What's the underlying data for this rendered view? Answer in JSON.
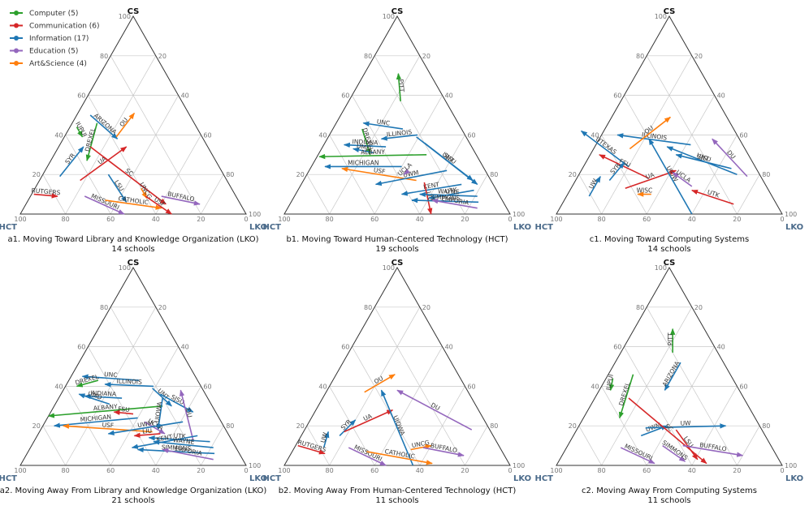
{
  "legend": [
    {
      "label": "Computer (5)",
      "color": "#2ca02c"
    },
    {
      "label": "Communication (6)",
      "color": "#d62728"
    },
    {
      "label": "Information (17)",
      "color": "#1f77b4"
    },
    {
      "label": "Education (5)",
      "color": "#9467bd"
    },
    {
      "label": "Art&Science (4)",
      "color": "#ff7f0e"
    }
  ],
  "axes": {
    "top": "CS",
    "left": "HCT",
    "right": "LKO",
    "ticks": [
      "20",
      "40",
      "60",
      "80",
      "100"
    ],
    "zero": "0"
  },
  "chart_data": [
    {
      "type": "ternary-arrows",
      "id": "a1",
      "title": "a1. Moving Toward Library and Knowledge Organization (LKO)",
      "subtitle": "14 schools",
      "arrows": [
        {
          "label": "IUPUI",
          "cat": 0,
          "from": [
            53,
            44
          ],
          "to": [
            53,
            39
          ]
        },
        {
          "label": "DREXEL",
          "cat": 0,
          "from": [
            43,
            46
          ],
          "to": [
            57,
            27
          ]
        },
        {
          "label": "ARIZONA",
          "cat": 2,
          "from": [
            44,
            50
          ],
          "to": [
            38,
            38
          ]
        },
        {
          "label": "OU",
          "cat": 4,
          "from": [
            38,
            39
          ],
          "to": [
            24,
            51
          ]
        },
        {
          "label": "SYR",
          "cat": 2,
          "from": [
            73,
            19
          ],
          "to": [
            55,
            34
          ]
        },
        {
          "label": "RUTGERS",
          "cat": 1,
          "from": [
            89,
            10
          ],
          "to": [
            79,
            9
          ]
        },
        {
          "label": "UA",
          "cat": 1,
          "from": [
            65,
            17
          ],
          "to": [
            36,
            34
          ]
        },
        {
          "label": "LSU",
          "cat": 2,
          "from": [
            51,
            20
          ],
          "to": [
            50,
            6
          ]
        },
        {
          "label": "SC",
          "cat": 1,
          "from": [
            52,
            34
          ],
          "to": [
            33,
            5
          ]
        },
        {
          "label": "UNCG",
          "cat": 4,
          "from": [
            40,
            13
          ],
          "to": [
            40,
            8
          ]
        },
        {
          "label": "BUFFALO",
          "cat": 3,
          "from": [
            33,
            9
          ],
          "to": [
            18,
            5
          ]
        },
        {
          "label": "MISSOURI",
          "cat": 3,
          "from": [
            67,
            9
          ],
          "to": [
            54,
            0
          ]
        },
        {
          "label": "CATHOLIC",
          "cat": 4,
          "from": [
            59,
            7
          ],
          "to": [
            36,
            3
          ]
        },
        {
          "label": "USF",
          "cat": 1,
          "from": [
            40,
            9
          ],
          "to": [
            33,
            0
          ]
        }
      ]
    },
    {
      "type": "ternary-arrows",
      "id": "b1",
      "title": "b1. Moving Toward Human-Centered Technology (HCT)",
      "subtitle": "19 schools",
      "arrows": [
        {
          "label": "PITT",
          "cat": 0,
          "from": [
            20,
            57
          ],
          "to": [
            14,
            71
          ]
        },
        {
          "label": "UNC",
          "cat": 2,
          "from": [
            26,
            43
          ],
          "to": [
            42,
            46
          ]
        },
        {
          "label": "ILLINOIS",
          "cat": 2,
          "from": [
            21,
            40
          ],
          "to": [
            38,
            38
          ]
        },
        {
          "label": "DREXEL",
          "cat": 0,
          "from": [
            44,
            43
          ],
          "to": [
            47,
            30
          ]
        },
        {
          "label": "INDIANA",
          "cat": 2,
          "from": [
            38,
            34
          ],
          "to": [
            56,
            35
          ]
        },
        {
          "label": "UMD",
          "cat": 2,
          "from": [
            45,
            31
          ],
          "to": [
            53,
            33
          ]
        },
        {
          "label": "UNT",
          "cat": 2,
          "from": [
            22,
            39
          ],
          "to": [
            7,
            15
          ]
        },
        {
          "label": "SJSU",
          "cat": 2,
          "from": [
            20,
            36
          ],
          "to": [
            8,
            17
          ]
        },
        {
          "label": "ALBANY",
          "cat": 0,
          "from": [
            22,
            30
          ],
          "to": [
            70,
            29
          ]
        },
        {
          "label": "MICHIGAN",
          "cat": 2,
          "from": [
            36,
            24
          ],
          "to": [
            70,
            24
          ]
        },
        {
          "label": "USF",
          "cat": 4,
          "from": [
            33,
            17
          ],
          "to": [
            63,
            23
          ]
        },
        {
          "label": "UWM",
          "cat": 2,
          "from": [
            17,
            22
          ],
          "to": [
            52,
            15
          ]
        },
        {
          "label": "UCLA",
          "cat": 3,
          "from": [
            34,
            22
          ],
          "to": [
            37,
            20
          ]
        },
        {
          "label": "KENT",
          "cat": 2,
          "from": [
            14,
            15
          ],
          "to": [
            43,
            10
          ]
        },
        {
          "label": "LIU",
          "cat": 1,
          "from": [
            30,
            16
          ],
          "to": [
            35,
            0
          ]
        },
        {
          "label": "UTK",
          "cat": 2,
          "from": [
            10,
            12
          ],
          "to": [
            32,
            8
          ]
        },
        {
          "label": "WAYNE",
          "cat": 2,
          "from": [
            10,
            9
          ],
          "to": [
            35,
            10
          ]
        },
        {
          "label": "SIMMONS",
          "cat": 2,
          "from": [
            11,
            6
          ],
          "to": [
            40,
            7
          ]
        },
        {
          "label": "EMPORIA",
          "cat": 3,
          "from": [
            13,
            3
          ],
          "to": [
            31,
            7
          ]
        }
      ]
    },
    {
      "type": "ternary-arrows",
      "id": "c1",
      "title": "c1. Moving Toward Computing Systems",
      "subtitle": "14 schools",
      "arrows": [
        {
          "label": "ILLINOIS",
          "cat": 2,
          "from": [
            23,
            35
          ],
          "to": [
            53,
            40
          ]
        },
        {
          "label": "UTEXAS",
          "cat": 2,
          "from": [
            56,
            24
          ],
          "to": [
            68,
            42
          ]
        },
        {
          "label": "UNT",
          "cat": 2,
          "from": [
            10,
            20
          ],
          "to": [
            34,
            34
          ]
        },
        {
          "label": "OU",
          "cat": 4,
          "from": [
            51,
            33
          ],
          "to": [
            25,
            49
          ]
        },
        {
          "label": "DU",
          "cat": 3,
          "from": [
            6,
            19
          ],
          "to": [
            12,
            38
          ]
        },
        {
          "label": "SJSU",
          "cat": 2,
          "from": [
            11,
            23
          ],
          "to": [
            32,
            30
          ]
        },
        {
          "label": "FSU",
          "cat": 1,
          "from": [
            50,
            18
          ],
          "to": [
            66,
            30
          ]
        },
        {
          "label": "UA",
          "cat": 1,
          "from": [
            63,
            13
          ],
          "to": [
            36,
            22
          ]
        },
        {
          "label": "UW",
          "cat": 2,
          "from": [
            81,
            9
          ],
          "to": [
            71,
            19
          ]
        },
        {
          "label": "SYR",
          "cat": 2,
          "from": [
            68,
            17
          ],
          "to": [
            57,
            26
          ]
        },
        {
          "label": "UIOW",
          "cat": 2,
          "from": [
            40,
            0
          ],
          "to": [
            40,
            38
          ]
        },
        {
          "label": "UCLA",
          "cat": 3,
          "from": [
            33,
            14
          ],
          "to": [
            38,
            21
          ]
        },
        {
          "label": "UTK",
          "cat": 1,
          "from": [
            19,
            5
          ],
          "to": [
            34,
            12
          ]
        },
        {
          "label": "WISC",
          "cat": 4,
          "from": [
            53,
            10
          ],
          "to": [
            59,
            10
          ]
        }
      ]
    },
    {
      "type": "ternary-arrows",
      "id": "a2",
      "title": "a2. Moving Away From Library and Knowledge Organization (LKO)",
      "subtitle": "21 schools",
      "arrows": [
        {
          "label": "UNC",
          "cat": 2,
          "from": [
            26,
            43
          ],
          "to": [
            50,
            45
          ]
        },
        {
          "label": "DREXEL",
          "cat": 0,
          "from": [
            44,
            43
          ],
          "to": [
            55,
            40
          ]
        },
        {
          "label": "ILLINOIS",
          "cat": 2,
          "from": [
            21,
            40
          ],
          "to": [
            42,
            41
          ]
        },
        {
          "label": "INDIANA",
          "cat": 2,
          "from": [
            38,
            34
          ],
          "to": [
            54,
            35
          ]
        },
        {
          "label": "UMD",
          "cat": 2,
          "from": [
            45,
            31
          ],
          "to": [
            56,
            36
          ]
        },
        {
          "label": "ALBANY",
          "cat": 0,
          "from": [
            22,
            30
          ],
          "to": [
            75,
            25
          ]
        },
        {
          "label": "MICHIGAN",
          "cat": 2,
          "from": [
            36,
            24
          ],
          "to": [
            75,
            20
          ]
        },
        {
          "label": "USF",
          "cat": 4,
          "from": [
            33,
            17
          ],
          "to": [
            71,
            20
          ]
        },
        {
          "label": "UNT",
          "cat": 2,
          "from": [
            22,
            39
          ],
          "to": [
            18,
            30
          ]
        },
        {
          "label": "SJSU",
          "cat": 2,
          "from": [
            20,
            36
          ],
          "to": [
            10,
            27
          ]
        },
        {
          "label": "DU",
          "cat": 3,
          "from": [
            17,
            13
          ],
          "to": [
            10,
            38
          ]
        },
        {
          "label": "FSU",
          "cat": 1,
          "from": [
            37,
            26
          ],
          "to": [
            45,
            27
          ]
        },
        {
          "label": "UIOWA",
          "cat": 2,
          "from": [
            20,
            34
          ],
          "to": [
            30,
            18
          ]
        },
        {
          "label": "UCLA",
          "cat": 3,
          "from": [
            34,
            22
          ],
          "to": [
            28,
            16
          ]
        },
        {
          "label": "UWM",
          "cat": 2,
          "from": [
            17,
            22
          ],
          "to": [
            53,
            16
          ]
        },
        {
          "label": "LIU",
          "cat": 1,
          "from": [
            30,
            16
          ],
          "to": [
            42,
            15
          ]
        },
        {
          "label": "UTK",
          "cat": 2,
          "from": [
            10,
            12
          ],
          "to": [
            36,
            14
          ]
        },
        {
          "label": "KENT",
          "cat": 2,
          "from": [
            14,
            15
          ],
          "to": [
            46,
            9
          ]
        },
        {
          "label": "WAYNE",
          "cat": 2,
          "from": [
            10,
            9
          ],
          "to": [
            35,
            12
          ]
        },
        {
          "label": "SIMMONS",
          "cat": 2,
          "from": [
            11,
            6
          ],
          "to": [
            44,
            8
          ]
        },
        {
          "label": "EMPORIA",
          "cat": 3,
          "from": [
            13,
            3
          ],
          "to": [
            33,
            8
          ]
        }
      ]
    },
    {
      "type": "ternary-arrows",
      "id": "b2",
      "title": "b2. Moving Away From Human-Centered Technology (HCT)",
      "subtitle": "11 schools",
      "arrows": [
        {
          "label": "UW",
          "cat": 2,
          "from": [
            78,
            9
          ],
          "to": [
            72,
            17
          ]
        },
        {
          "label": "SYR",
          "cat": 2,
          "from": [
            68,
            15
          ],
          "to": [
            57,
            23
          ]
        },
        {
          "label": "RUTGERS",
          "cat": 1,
          "from": [
            89,
            10
          ],
          "to": [
            79,
            6
          ]
        },
        {
          "label": "OU",
          "cat": 4,
          "from": [
            46,
            37
          ],
          "to": [
            28,
            46
          ]
        },
        {
          "label": "UA",
          "cat": 1,
          "from": [
            65,
            17
          ],
          "to": [
            38,
            28
          ]
        },
        {
          "label": "UIOWA",
          "cat": 2,
          "from": [
            43,
            0
          ],
          "to": [
            38,
            38
          ]
        },
        {
          "label": "DU",
          "cat": 3,
          "from": [
            8,
            18
          ],
          "to": [
            31,
            38
          ]
        },
        {
          "label": "MISSOURI",
          "cat": 3,
          "from": [
            67,
            9
          ],
          "to": [
            55,
            0
          ]
        },
        {
          "label": "UNCG",
          "cat": 4,
          "from": [
            40,
            8
          ],
          "to": [
            30,
            10
          ]
        },
        {
          "label": "CATHOLIC",
          "cat": 4,
          "from": [
            60,
            7
          ],
          "to": [
            34,
            1
          ]
        },
        {
          "label": "BUFFALO",
          "cat": 3,
          "from": [
            34,
            9
          ],
          "to": [
            18,
            5
          ]
        }
      ]
    },
    {
      "type": "ternary-arrows",
      "id": "c2",
      "title": "c2. Moving Away From Computing Systems",
      "subtitle": "11 schools",
      "arrows": [
        {
          "label": "PITT",
          "cat": 0,
          "from": [
            20,
            57
          ],
          "to": [
            14,
            69
          ]
        },
        {
          "label": "IUPUI",
          "cat": 0,
          "from": [
            53,
            44
          ],
          "to": [
            57,
            38
          ]
        },
        {
          "label": "DREXEL",
          "cat": 0,
          "from": [
            43,
            46
          ],
          "to": [
            60,
            24
          ]
        },
        {
          "label": "ARIZONA",
          "cat": 2,
          "from": [
            19,
            52
          ],
          "to": [
            33,
            38
          ]
        },
        {
          "label": "UWM",
          "cat": 2,
          "from": [
            55,
            15
          ],
          "to": [
            41,
            20
          ]
        },
        {
          "label": "UW",
          "cat": 2,
          "from": [
            51,
            19
          ],
          "to": [
            15,
            20
          ]
        },
        {
          "label": "MISSOURI",
          "cat": 3,
          "from": [
            67,
            9
          ],
          "to": [
            56,
            1
          ]
        },
        {
          "label": "SIMMONS",
          "cat": 3,
          "from": [
            48,
            10
          ],
          "to": [
            42,
            2
          ]
        },
        {
          "label": "LSU",
          "cat": 1,
          "from": [
            38,
            18
          ],
          "to": [
            36,
            3
          ]
        },
        {
          "label": "SC",
          "cat": 1,
          "from": [
            51,
            34
          ],
          "to": [
            33,
            1
          ]
        },
        {
          "label": "BUFFALO",
          "cat": 3,
          "from": [
            39,
            10
          ],
          "to": [
            15,
            5
          ]
        }
      ]
    }
  ]
}
